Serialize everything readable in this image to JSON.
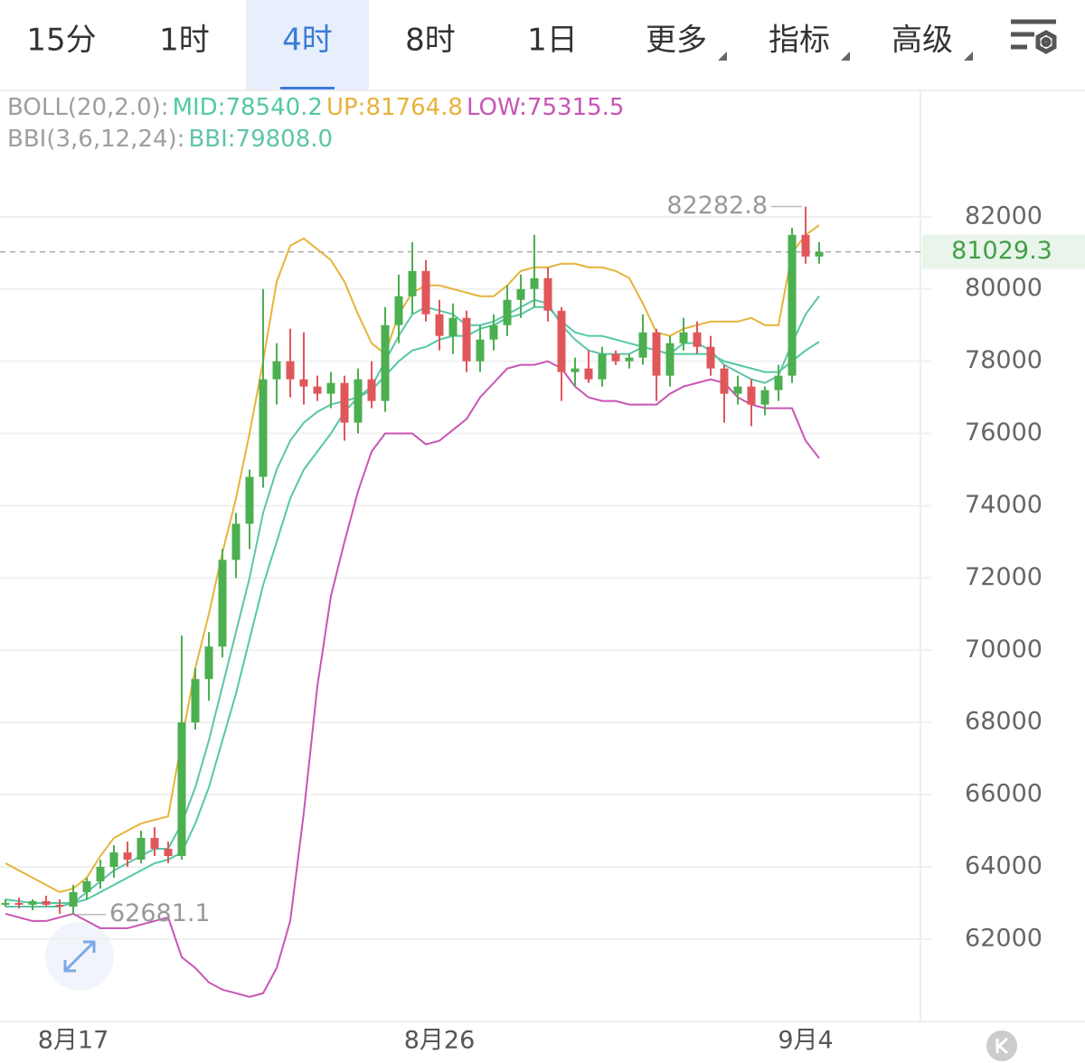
{
  "tabs": [
    {
      "label": "15分",
      "active": false,
      "menu": false
    },
    {
      "label": "1时",
      "active": false,
      "menu": false
    },
    {
      "label": "4时",
      "active": true,
      "menu": false
    },
    {
      "label": "8时",
      "active": false,
      "menu": false
    },
    {
      "label": "1日",
      "active": false,
      "menu": false
    },
    {
      "label": "更多",
      "active": false,
      "menu": true
    },
    {
      "label": "指标",
      "active": false,
      "menu": true
    },
    {
      "label": "高级",
      "active": false,
      "menu": true
    }
  ],
  "chart_data": {
    "type": "candlestick",
    "categories": [
      null,
      null,
      null,
      null,
      null,
      "8月17",
      null,
      null,
      null,
      null,
      null,
      null,
      null,
      null,
      null,
      null,
      null,
      null,
      null,
      null,
      null,
      null,
      null,
      null,
      null,
      null,
      null,
      null,
      null,
      null,
      null,
      null,
      "8月26",
      null,
      null,
      null,
      null,
      null,
      null,
      null,
      null,
      null,
      null,
      null,
      null,
      null,
      null,
      null,
      null,
      null,
      null,
      null,
      null,
      null,
      null,
      null,
      null,
      null,
      null,
      "9月4",
      null
    ],
    "open": [
      63000,
      63000,
      62950,
      63050,
      62950,
      62900,
      63300,
      63600,
      64000,
      64400,
      64200,
      64800,
      64500,
      64300,
      68000,
      69200,
      70100,
      72500,
      73500,
      74800,
      77500,
      78000,
      77500,
      77300,
      77100,
      77400,
      76300,
      77500,
      76900,
      79000,
      79800,
      80500,
      79300,
      78700,
      79200,
      78000,
      78600,
      79000,
      79700,
      80000,
      80300,
      79400,
      77700,
      77800,
      77500,
      78200,
      78000,
      78100,
      78800,
      77600,
      78500,
      78800,
      78400,
      77800,
      77100,
      77300,
      76800,
      77200,
      77600,
      81500,
      80900
    ],
    "high": [
      63100,
      63150,
      63100,
      63200,
      63100,
      63500,
      63700,
      64200,
      64600,
      64700,
      65000,
      65100,
      64700,
      70400,
      69500,
      70500,
      72800,
      73800,
      75000,
      80000,
      78500,
      78900,
      78800,
      77600,
      77700,
      77600,
      77800,
      78000,
      79500,
      80400,
      81300,
      80800,
      79700,
      79600,
      79400,
      79000,
      79300,
      80100,
      80400,
      81500,
      80600,
      79500,
      78100,
      78300,
      78400,
      78300,
      78200,
      79300,
      78900,
      78700,
      79200,
      79100,
      78700,
      77900,
      77600,
      77500,
      77300,
      77900,
      81700,
      82282.8,
      81300
    ],
    "low": [
      62900,
      62850,
      62800,
      62900,
      62700,
      62681.1,
      63100,
      63400,
      63700,
      64000,
      64100,
      64300,
      64100,
      64200,
      67800,
      68600,
      69800,
      72000,
      72800,
      74500,
      76800,
      77000,
      76800,
      76900,
      76700,
      75800,
      76000,
      76700,
      76600,
      78500,
      79300,
      79100,
      78300,
      78200,
      77700,
      77700,
      78300,
      78700,
      79200,
      79500,
      79100,
      76900,
      77300,
      77400,
      77300,
      77900,
      77800,
      77900,
      76900,
      77300,
      78300,
      78200,
      77600,
      76300,
      76800,
      76200,
      76500,
      76900,
      77400,
      80700,
      80700
    ],
    "close": [
      63000,
      62950,
      63050,
      62950,
      62900,
      63300,
      63600,
      64000,
      64400,
      64200,
      64800,
      64500,
      64300,
      68000,
      69200,
      70100,
      72500,
      73500,
      74800,
      77500,
      78000,
      77500,
      77300,
      77100,
      77400,
      76300,
      77500,
      76900,
      79000,
      79800,
      80500,
      79300,
      78700,
      79200,
      78000,
      78600,
      79000,
      79700,
      80000,
      80300,
      79400,
      77700,
      77800,
      77500,
      78200,
      78000,
      78100,
      78800,
      77600,
      78500,
      78800,
      78400,
      77800,
      77100,
      77300,
      76800,
      77200,
      77600,
      81500,
      80900,
      81029.3
    ],
    "up_color": "#4caf50",
    "down_color": "#e0575b",
    "indicators": [
      {
        "label": "BOLL(20,2.0):",
        "series": [
          {
            "name": "MID:78540.2",
            "color": "#52c9a4",
            "values": [
              63100,
              63050,
              63000,
              63000,
              63000,
              63000,
              63100,
              63300,
              63500,
              63700,
              63900,
              64100,
              64200,
              64400,
              65200,
              66200,
              67500,
              68800,
              70300,
              71800,
              73000,
              74200,
              75000,
              75500,
              76000,
              76600,
              77000,
              77200,
              77600,
              78000,
              78300,
              78400,
              78600,
              78700,
              78700,
              78900,
              79000,
              79200,
              79300,
              79500,
              79500,
              79100,
              78800,
              78700,
              78700,
              78600,
              78500,
              78400,
              78300,
              78200,
              78200,
              78200,
              78200,
              78000,
              77900,
              77800,
              77700,
              77700,
              78000,
              78300,
              78540.2
            ]
          },
          {
            "name": "UP:81764.8",
            "color": "#e6b43a",
            "values": [
              64100,
              63900,
              63700,
              63500,
              63300,
              63400,
              63700,
              64300,
              64800,
              65000,
              65200,
              65300,
              65400,
              67500,
              69500,
              71000,
              72700,
              74200,
              76000,
              78000,
              80200,
              81200,
              81400,
              81100,
              80800,
              80200,
              79300,
              78500,
              78200,
              79300,
              79900,
              80100,
              80100,
              80000,
              79900,
              79800,
              79800,
              80100,
              80500,
              80600,
              80600,
              80700,
              80700,
              80600,
              80600,
              80500,
              80300,
              79600,
              78800,
              78700,
              78900,
              79000,
              79100,
              79100,
              79100,
              79200,
              79000,
              79000,
              81000,
              81500,
              81764.8
            ]
          },
          {
            "name": "LOW:75315.5",
            "color": "#c855b5",
            "values": [
              62700,
              62600,
              62500,
              62500,
              62600,
              62700,
              62500,
              62300,
              62300,
              62300,
              62400,
              62500,
              62600,
              61500,
              61200,
              60800,
              60600,
              60500,
              60400,
              60500,
              61200,
              62500,
              65500,
              69000,
              71500,
              73000,
              74400,
              75500,
              76000,
              76000,
              76000,
              75700,
              75800,
              76100,
              76400,
              77000,
              77400,
              77800,
              77900,
              77900,
              78000,
              77800,
              77300,
              77000,
              76900,
              76900,
              76800,
              76800,
              76800,
              77100,
              77300,
              77400,
              77500,
              77400,
              77000,
              76800,
              76700,
              76700,
              76700,
              75800,
              75315.5
            ]
          }
        ]
      },
      {
        "label": "BBI(3,6,12,24):",
        "series": [
          {
            "name": "BBI:79808.0",
            "color": "#5ec4a8",
            "values": [
              62900,
              62900,
              62900,
              62900,
              62900,
              63000,
              63300,
              63600,
              63900,
              64100,
              64300,
              64500,
              64500,
              65200,
              66200,
              67500,
              69000,
              70500,
              72000,
              73800,
              75000,
              75800,
              76300,
              76600,
              76800,
              76900,
              77000,
              77300,
              78000,
              78700,
              79300,
              79500,
              79400,
              79300,
              79000,
              79000,
              79100,
              79300,
              79500,
              79700,
              79600,
              79000,
              78600,
              78300,
              78200,
              78200,
              78200,
              78400,
              78300,
              78200,
              78500,
              78500,
              78300,
              77900,
              77700,
              77500,
              77400,
              77600,
              78500,
              79300,
              79808
            ]
          }
        ]
      }
    ],
    "last_price": 81029.3,
    "ylim": [
      59720,
      85500
    ],
    "yticks": [
      62000,
      64000,
      66000,
      68000,
      70000,
      72000,
      74000,
      76000,
      78000,
      80000,
      82000
    ],
    "grid": true
  }
}
